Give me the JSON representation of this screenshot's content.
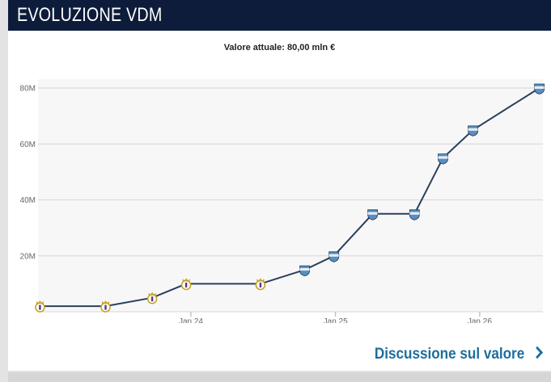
{
  "header": {
    "title": "EVOLUZIONE VDM"
  },
  "subtitle": "Valore attuale: 80,00 mln €",
  "link": {
    "label": "Discussione sul valore"
  },
  "colors": {
    "header_bg": "#0d1c3a",
    "line": "#2b3f5c",
    "link": "#1d6e9c",
    "plot_bg": "#f7f7f7",
    "grid": "#d6d6d6",
    "crest_real_madrid": "#c9a227",
    "crest_other": "#5a8ec0"
  },
  "chart_data": {
    "type": "line",
    "title": "Valore attuale: 80,00 mln €",
    "xlabel": "",
    "ylabel": "",
    "ylim": [
      0,
      80000000
    ],
    "y_ticks": [
      {
        "value": 20000000,
        "label": "20M"
      },
      {
        "value": 40000000,
        "label": "40M"
      },
      {
        "value": 60000000,
        "label": "60M"
      },
      {
        "value": 80000000,
        "label": "80M"
      }
    ],
    "x_ticks": [
      {
        "value": "2024-01-01",
        "label": "Jan 24"
      },
      {
        "value": "2025-01-01",
        "label": "Jan 25"
      },
      {
        "value": "2026-01-01",
        "label": "Jan 26"
      }
    ],
    "x_range": [
      "2022-12-10",
      "2026-06-10"
    ],
    "grid": true,
    "points": [
      {
        "x": "2022-12-15",
        "y": 2000000,
        "club": "Real Madrid",
        "crest": "real-madrid-crest-icon"
      },
      {
        "x": "2023-05-30",
        "y": 2000000,
        "club": "Real Madrid",
        "crest": "real-madrid-crest-icon"
      },
      {
        "x": "2023-09-25",
        "y": 5000000,
        "club": "Real Madrid",
        "crest": "real-madrid-crest-icon"
      },
      {
        "x": "2023-12-20",
        "y": 10000000,
        "club": "Real Madrid",
        "crest": "real-madrid-crest-icon"
      },
      {
        "x": "2024-06-25",
        "y": 10000000,
        "club": "Real Madrid",
        "crest": "real-madrid-crest-icon"
      },
      {
        "x": "2024-10-15",
        "y": 15000000,
        "club": "",
        "crest": "club-crest-icon"
      },
      {
        "x": "2024-12-28",
        "y": 20000000,
        "club": "",
        "crest": "club-crest-icon"
      },
      {
        "x": "2025-04-05",
        "y": 35000000,
        "club": "",
        "crest": "club-crest-icon"
      },
      {
        "x": "2025-07-20",
        "y": 35000000,
        "club": "",
        "crest": "club-crest-icon"
      },
      {
        "x": "2025-09-30",
        "y": 55000000,
        "club": "",
        "crest": "club-crest-icon"
      },
      {
        "x": "2025-12-15",
        "y": 65000000,
        "club": "",
        "crest": "club-crest-icon"
      },
      {
        "x": "2026-06-01",
        "y": 80000000,
        "club": "",
        "crest": "club-crest-icon"
      }
    ]
  }
}
